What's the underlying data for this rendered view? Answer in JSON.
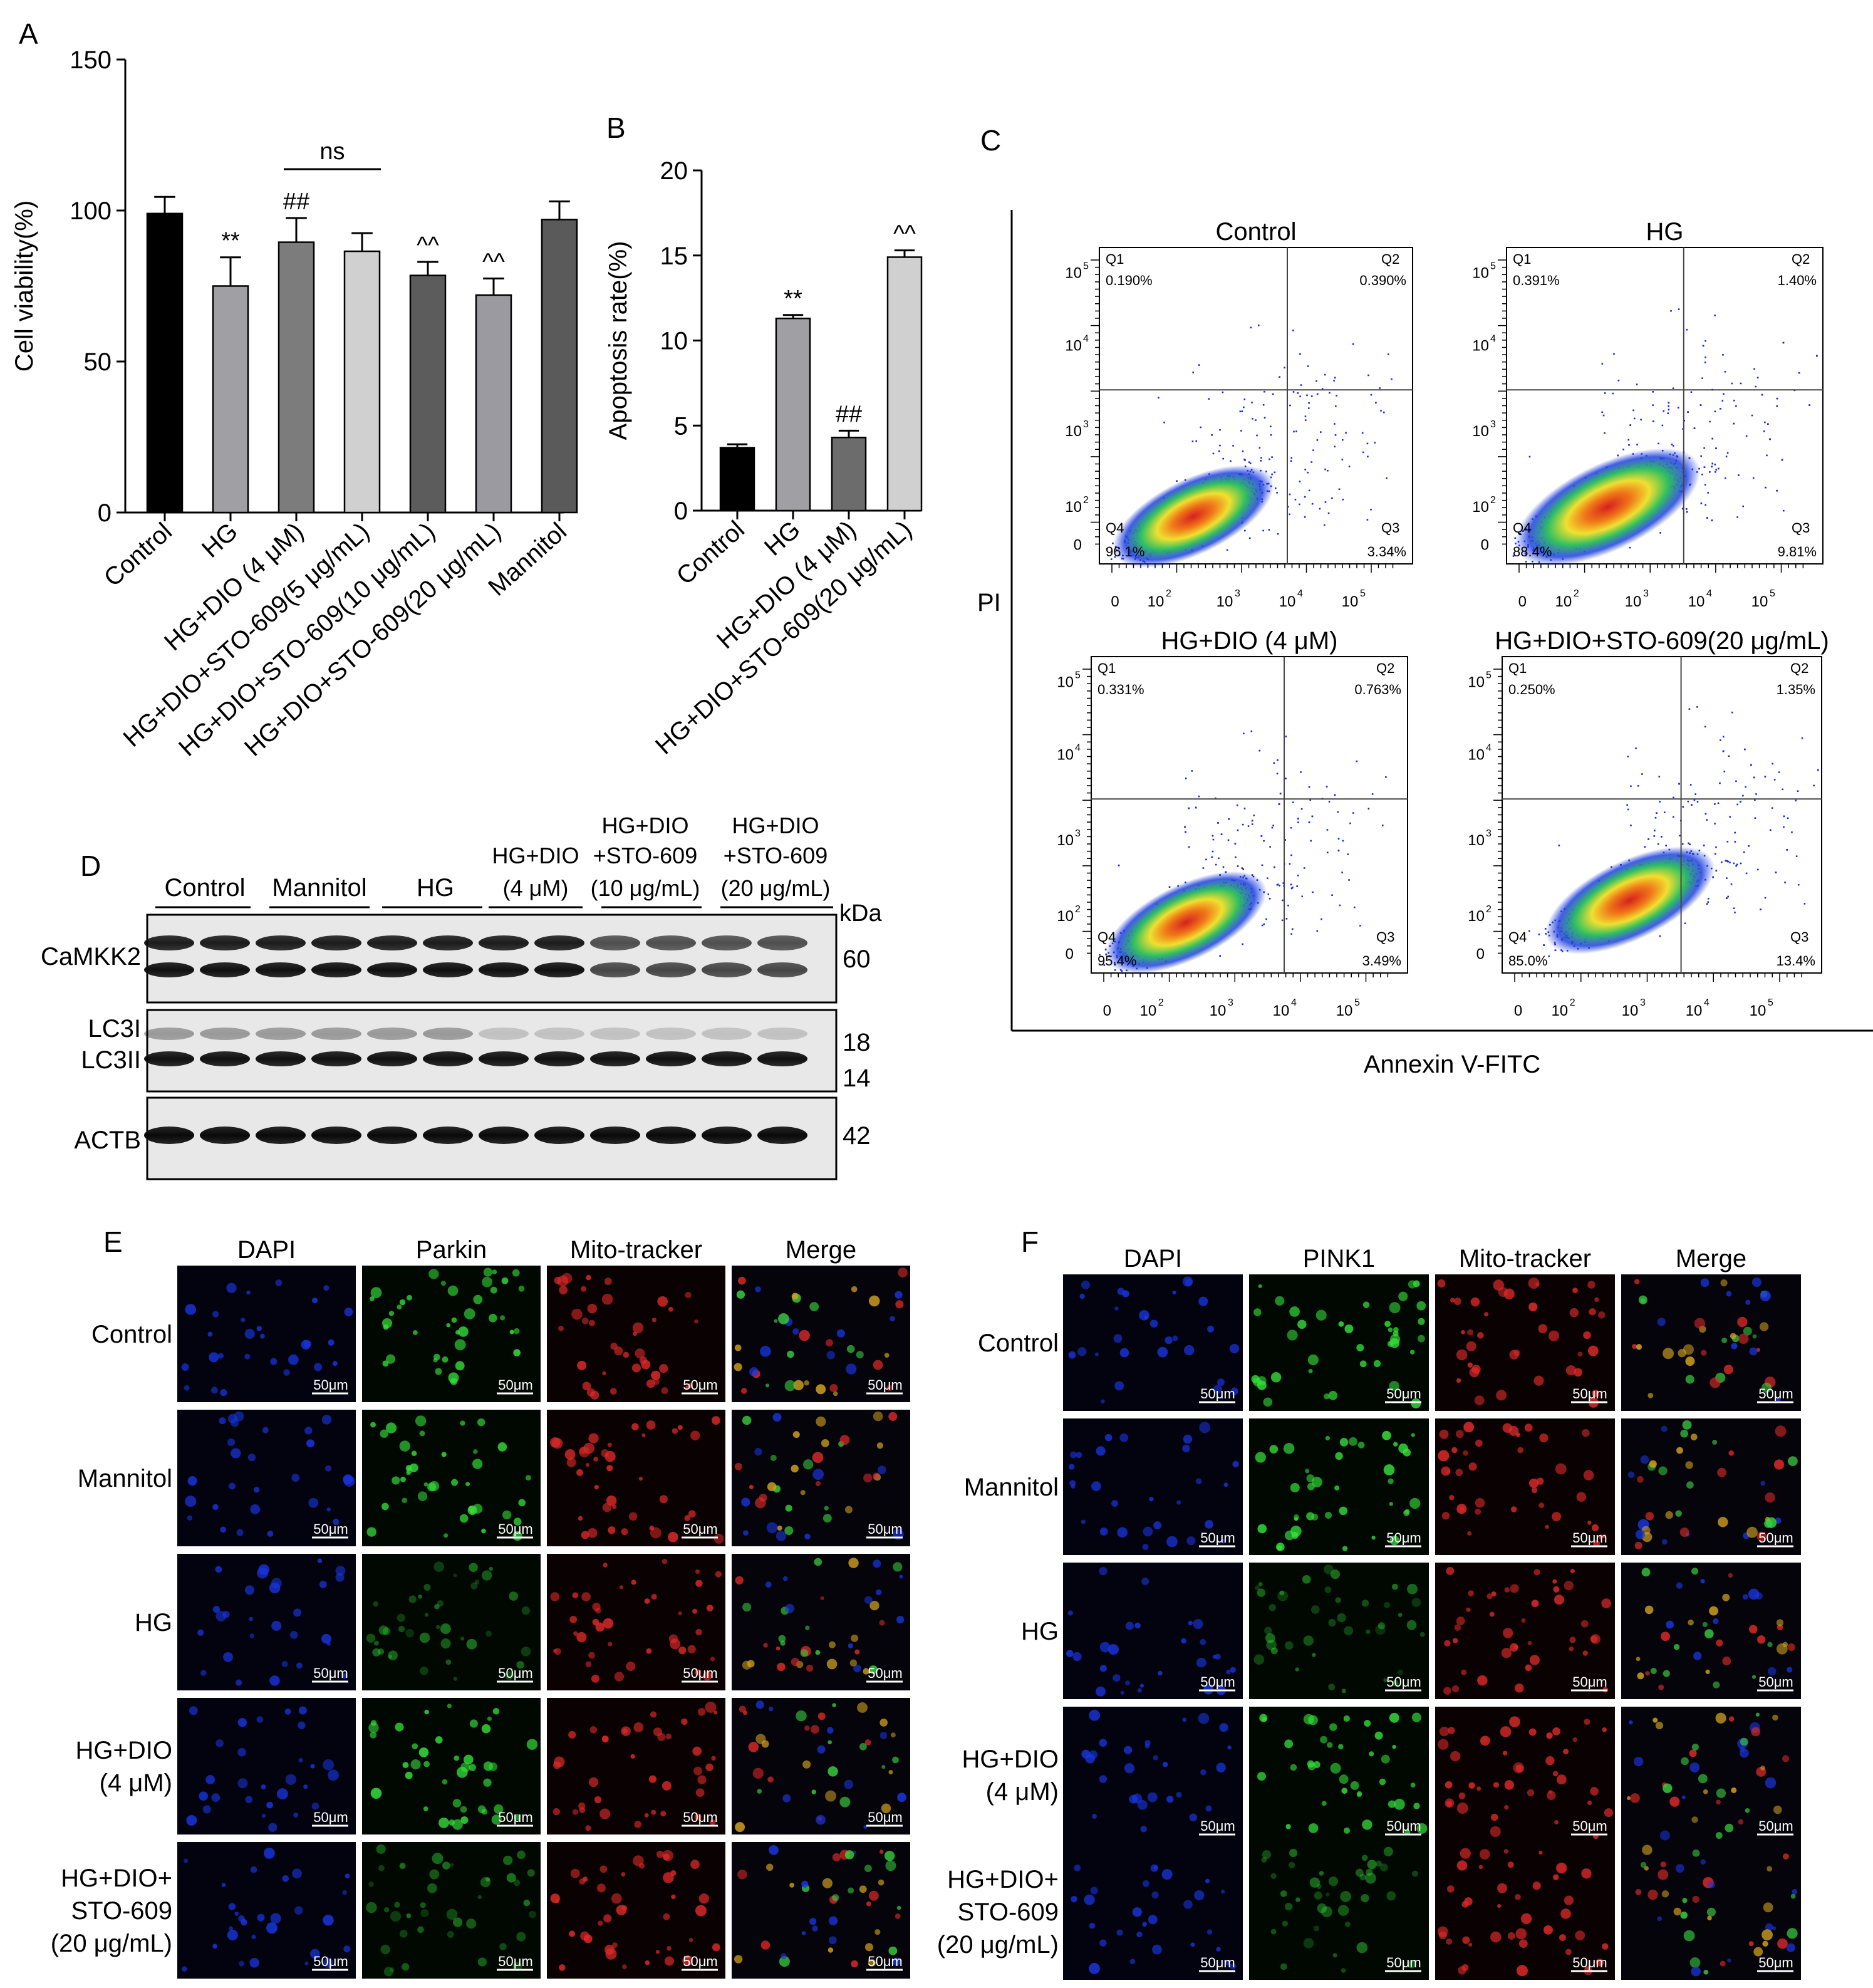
{
  "panel_letters": [
    "A",
    "B",
    "C",
    "D",
    "E",
    "F"
  ],
  "chart_data": [
    {
      "type": "bar",
      "panel": "A",
      "ylabel": "Cell viability(%)",
      "ylim": [
        0,
        150
      ],
      "yticks": [
        "0",
        "50",
        "100",
        "150"
      ],
      "categories": [
        "Control",
        "HG",
        "HG+DIO (4 μM)",
        "HG+DIO+STO-609(5 μg/mL)",
        "HG+DIO+STO-609(10 μg/mL)",
        "HG+DIO+STO-609(20 μg/mL)",
        "Mannitol"
      ],
      "values": [
        99,
        75,
        89.5,
        86.5,
        78.5,
        72,
        97
      ],
      "errors": [
        5.5,
        9.5,
        8,
        6,
        4.5,
        5.5,
        6
      ],
      "colors": [
        "#000000",
        "#a0a0a4",
        "#7c7c7c",
        "#d0d0d0",
        "#5c5c5c",
        "#9a9aa0",
        "#5a5a5a"
      ],
      "annotations": [
        "",
        "**",
        "##",
        "",
        "^^",
        "^^",
        ""
      ],
      "ns_label": "ns"
    },
    {
      "type": "bar",
      "panel": "B",
      "ylabel": "Apoptosis rate(%)",
      "ylim": [
        0,
        20
      ],
      "yticks": [
        "0",
        "5",
        "10",
        "15",
        "20"
      ],
      "categories": [
        "Control",
        "HG",
        "HG+DIO (4 μM)",
        "HG+DIO+STO-609(20 μg/mL)"
      ],
      "values": [
        3.7,
        11.3,
        4.3,
        14.9
      ],
      "errors": [
        0.2,
        0.2,
        0.4,
        0.4
      ],
      "colors": [
        "#000000",
        "#a0a0a4",
        "#6c6c6c",
        "#d0d0d0"
      ],
      "annotations": [
        "",
        "**",
        "##",
        "^^"
      ]
    },
    {
      "type": "scatter",
      "panel": "C",
      "xlabel": "Annexin V-FITC",
      "ylabel": "PI",
      "plots": [
        {
          "title": "Control",
          "q1_label": "Q1",
          "q2_label": "Q2",
          "q3_label": "Q3",
          "q4_label": "Q4",
          "q1": "0.190%",
          "q2": "0.390%",
          "q3": "3.34%",
          "q4": "96.1%"
        },
        {
          "title": "HG",
          "q1_label": "Q1",
          "q2_label": "Q2",
          "q3_label": "Q3",
          "q4_label": "Q4",
          "q1": "0.391%",
          "q2": "1.40%",
          "q3": "9.81%",
          "q4": "88.4%"
        },
        {
          "title": "HG+DIO (4 μM)",
          "q1_label": "Q1",
          "q2_label": "Q2",
          "q3_label": "Q3",
          "q4_label": "Q4",
          "q1": "0.331%",
          "q2": "0.763%",
          "q3": "3.49%",
          "q4": "95.4%"
        },
        {
          "title": "HG+DIO+STO-609(20 μg/mL)",
          "q1_label": "Q1",
          "q2_label": "Q2",
          "q3_label": "Q3",
          "q4_label": "Q4",
          "q1": "0.250%",
          "q2": "1.35%",
          "q3": "13.4%",
          "q4": "85.0%"
        }
      ],
      "axis_ticks": [
        "0",
        "10",
        "10",
        "10",
        "10"
      ],
      "axis_exponents": [
        "",
        "2",
        "3",
        "4",
        "5"
      ]
    }
  ],
  "western_blot": {
    "groups": [
      "Control",
      "Mannitol",
      "HG",
      "HG+DIO\n(4 μM)",
      "HG+DIO\n+STO-609\n(10 μg/mL)",
      "HG+DIO\n+STO-609\n(20 μg/mL)"
    ],
    "group_lines": [
      [
        "HG+DIO",
        "(4 μM)"
      ],
      [
        "HG+DIO",
        "+STO-609",
        "(10 μg/mL)"
      ],
      [
        "HG+DIO",
        "+STO-609",
        "(20 μg/mL)"
      ]
    ],
    "kda_label": "kDa",
    "rows": [
      {
        "label": "CaMKK2",
        "markers": [
          "60"
        ]
      },
      {
        "label": "LC3I",
        "label2": "LC3II",
        "markers": [
          "18",
          "14"
        ]
      },
      {
        "label": "ACTB",
        "markers": [
          "42"
        ]
      }
    ]
  },
  "panel_E": {
    "columns": [
      "DAPI",
      "Parkin",
      "Mito-tracker",
      "Merge"
    ],
    "rows": [
      [
        "Control"
      ],
      [
        "Mannitol"
      ],
      [
        "HG"
      ],
      [
        "HG+DIO",
        "(4 μM)"
      ],
      [
        "HG+DIO+",
        "STO-609",
        "(20 μg/mL)"
      ]
    ],
    "scale_bar": "50μm"
  },
  "panel_F": {
    "columns": [
      "DAPI",
      "PINK1",
      "Mito-tracker",
      "Merge"
    ],
    "rows": [
      [
        "Control"
      ],
      [
        "Mannitol"
      ],
      [
        "HG"
      ],
      [
        "HG+DIO",
        "(4 μM)"
      ],
      [
        "HG+DIO+",
        "STO-609",
        "(20 μg/mL)"
      ]
    ],
    "scale_bar": "50μm"
  }
}
